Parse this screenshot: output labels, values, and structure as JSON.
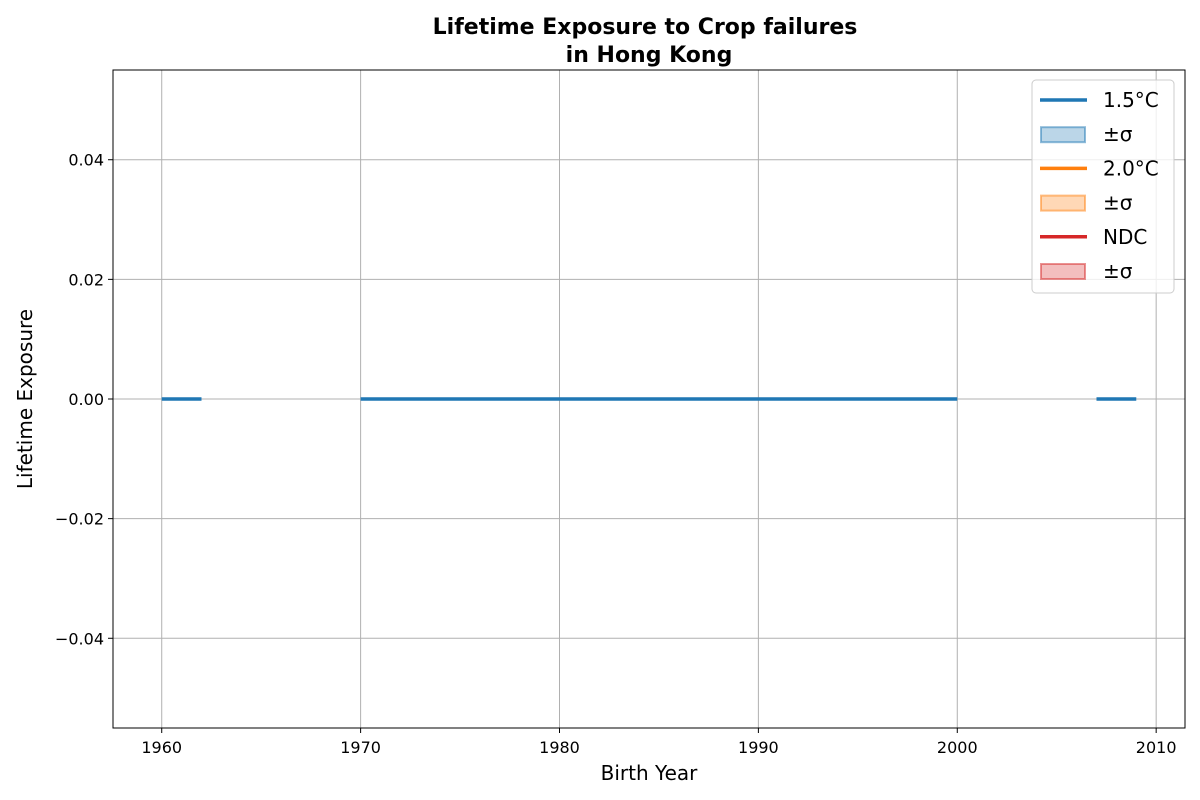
{
  "chart_data": {
    "type": "line",
    "title_lines": [
      "Lifetime Exposure to Crop failures",
      "in Hong Kong"
    ],
    "xlabel": "Birth Year",
    "ylabel": "Lifetime Exposure",
    "xlim": [
      1957.55,
      2011.45
    ],
    "ylim": [
      -0.055,
      0.055
    ],
    "x_ticks": [
      1960,
      1970,
      1980,
      1990,
      2000,
      2010
    ],
    "x_tick_labels": [
      "1960",
      "1970",
      "1980",
      "1990",
      "2000",
      "2010"
    ],
    "y_ticks": [
      -0.04,
      -0.02,
      0.0,
      0.02,
      0.04
    ],
    "y_tick_labels": [
      "−0.04",
      "−0.02",
      "0.00",
      "0.02",
      "0.04"
    ],
    "grid": true,
    "legend_position": "top-right",
    "legend": [
      {
        "label": "1.5°C",
        "kind": "line",
        "color": "#1f77b4"
      },
      {
        "label": "±σ",
        "kind": "band",
        "color": "#1f77b4"
      },
      {
        "label": "2.0°C",
        "kind": "line",
        "color": "#ff7f0e"
      },
      {
        "label": "±σ",
        "kind": "band",
        "color": "#ff7f0e"
      },
      {
        "label": "NDC",
        "kind": "line",
        "color": "#d62728"
      },
      {
        "label": "±σ",
        "kind": "band",
        "color": "#d62728"
      }
    ],
    "series": [
      {
        "name": "1.5°C",
        "color": "#1f77b4",
        "segments": [
          {
            "x": [
              1960,
              1962
            ],
            "y": [
              0,
              0
            ]
          },
          {
            "x": [
              1970,
              2000
            ],
            "y": [
              0,
              0
            ]
          },
          {
            "x": [
              2007,
              2009
            ],
            "y": [
              0,
              0
            ]
          }
        ]
      }
    ]
  }
}
